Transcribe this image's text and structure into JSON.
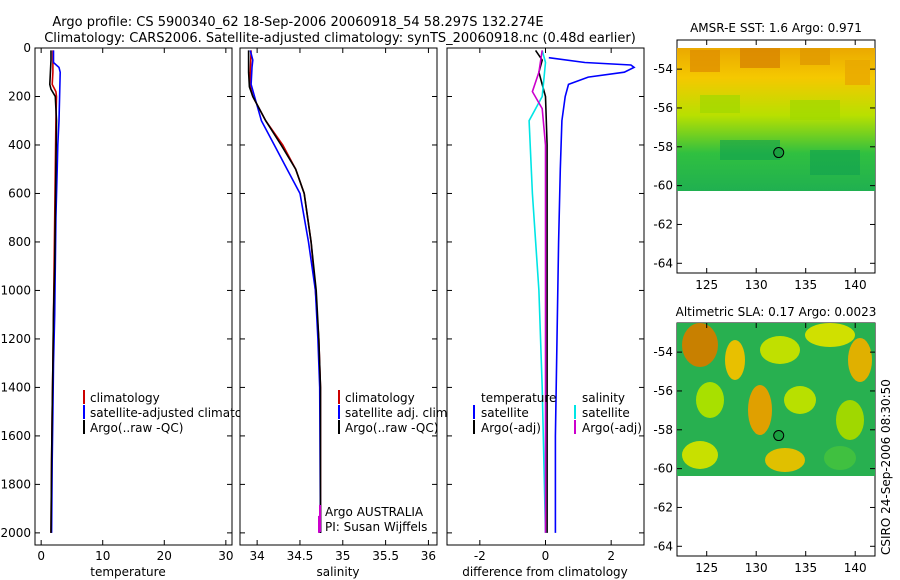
{
  "header": {
    "line1": "Argo profile: CS 5900340_62 18-Sep-2006 20060918_54 58.297S 132.274E",
    "line2": "Climatology: CARS2006. Satellite-adjusted climatology: synTS_20060918.nc (0.48d earlier)"
  },
  "side_label": "CSIRO 24-Sep-2006 08:30:50",
  "colors": {
    "climatology": "#cc0000",
    "satellite": "#0000ff",
    "argo": "#000000",
    "satellite_salinity": "#00e5e5",
    "argo_adj": "#cc00cc"
  },
  "chart_data": [
    {
      "type": "line",
      "xlabel": "temperature",
      "xlim": [
        -1,
        31
      ],
      "ylim": [
        2050,
        0
      ],
      "xticks": [
        0,
        10,
        20,
        30
      ],
      "yticks": [
        0,
        200,
        400,
        600,
        800,
        1000,
        1200,
        1400,
        1600,
        1800,
        2000
      ],
      "legend": [
        "climatology",
        "satellite-adjusted climatology",
        "Argo(..raw -QC)"
      ],
      "series": [
        {
          "name": "climatology",
          "color": "#cc0000",
          "x": [
            1.9,
            1.9,
            1.9,
            1.8,
            2.4,
            2.5,
            2.4,
            2.3,
            2.2,
            2.1,
            2.0,
            1.9,
            1.8,
            1.7,
            1.6
          ],
          "y": [
            10,
            50,
            100,
            150,
            180,
            200,
            300,
            500,
            700,
            900,
            1100,
            1300,
            1500,
            1700,
            2000
          ]
        },
        {
          "name": "satellite-adjusted climatology",
          "color": "#0000ff",
          "x": [
            2.0,
            2.0,
            2.9,
            3.1,
            3.0,
            2.9,
            2.7,
            2.6,
            2.4,
            2.3,
            2.2,
            2.0,
            1.9,
            1.8,
            1.7
          ],
          "y": [
            10,
            60,
            80,
            100,
            200,
            300,
            400,
            500,
            700,
            900,
            1100,
            1300,
            1500,
            1700,
            2000
          ]
        },
        {
          "name": "Argo(..raw -QC)",
          "color": "#000000",
          "x": [
            1.6,
            1.6,
            1.5,
            1.4,
            1.6,
            2.3,
            2.5,
            2.4,
            2.3,
            2.2,
            2.0,
            1.9,
            1.8,
            1.7,
            1.6
          ],
          "y": [
            10,
            50,
            100,
            150,
            170,
            200,
            300,
            500,
            700,
            900,
            1100,
            1300,
            1500,
            1700,
            2000
          ]
        }
      ]
    },
    {
      "type": "line",
      "xlabel": "salinity",
      "xlim": [
        33.8,
        36.1
      ],
      "ylim": [
        2050,
        0
      ],
      "xticks": [
        34,
        34.5,
        35,
        35.5,
        36
      ],
      "xtick_labels": [
        "34",
        "34.5",
        "35",
        "35.5",
        "36"
      ],
      "legend": [
        "climatology",
        "satellite adj. clim.",
        "Argo(..raw -QC)"
      ],
      "annotations": [
        "Argo AUSTRALIA",
        "PI: Susan Wijffels"
      ],
      "series": [
        {
          "name": "climatology",
          "color": "#cc0000",
          "x": [
            33.93,
            33.92,
            33.92,
            33.95,
            34.1,
            34.3,
            34.45,
            34.55,
            34.63,
            34.68,
            34.72,
            34.74,
            34.74
          ],
          "y": [
            10,
            100,
            160,
            200,
            300,
            400,
            500,
            600,
            800,
            1000,
            1200,
            1400,
            2000
          ]
        },
        {
          "name": "satellite adj. clim.",
          "color": "#0000ff",
          "x": [
            33.92,
            33.95,
            33.94,
            33.93,
            34.05,
            34.2,
            34.35,
            34.5,
            34.6,
            34.68,
            34.71,
            34.73,
            34.74
          ],
          "y": [
            10,
            50,
            80,
            150,
            300,
            400,
            500,
            600,
            800,
            1000,
            1200,
            1400,
            2000
          ]
        },
        {
          "name": "Argo(..raw -QC)",
          "color": "#000000",
          "x": [
            33.9,
            33.9,
            33.91,
            33.95,
            34.1,
            34.28,
            34.45,
            34.55,
            34.63,
            34.69,
            34.72,
            34.74,
            34.74
          ],
          "y": [
            10,
            100,
            160,
            200,
            300,
            400,
            500,
            600,
            800,
            1000,
            1200,
            1400,
            2000
          ]
        },
        {
          "name": "",
          "color": "#cc00cc",
          "x": [
            34.72,
            34.72
          ],
          "y": [
            1930,
            2000
          ]
        }
      ]
    },
    {
      "type": "line",
      "xlabel": "difference from climatology",
      "xlim": [
        -3,
        3
      ],
      "ylim": [
        2050,
        0
      ],
      "xticks": [
        -2,
        0,
        2
      ],
      "legend_columns": [
        {
          "title": "temperature",
          "items": [
            "satellite",
            "Argo(-adj)"
          ]
        },
        {
          "title": "salinity",
          "items": [
            "satellite",
            "Argo(-adj)"
          ]
        }
      ],
      "series": [
        {
          "name": "temperature satellite",
          "color": "#0000ff",
          "x": [
            0.1,
            1.2,
            2.6,
            2.7,
            2.4,
            1.3,
            0.7,
            0.6,
            0.5,
            0.45,
            0.4,
            0.35,
            0.3,
            0.3
          ],
          "y": [
            40,
            60,
            70,
            80,
            100,
            120,
            150,
            200,
            300,
            500,
            800,
            1200,
            1600,
            2000
          ]
        },
        {
          "name": "temperature Argo(-adj)",
          "color": "#000000",
          "x": [
            -0.3,
            -0.1,
            -0.2,
            -0.1,
            0.0,
            0.05,
            0.05,
            0.05,
            0.05,
            0.05
          ],
          "y": [
            10,
            50,
            100,
            150,
            200,
            400,
            800,
            1200,
            1600,
            2000
          ]
        },
        {
          "name": "salinity satellite",
          "color": "#00e5e5",
          "x": [
            -0.1,
            0.0,
            -0.1,
            -0.5,
            -0.4,
            -0.2,
            -0.1,
            0.0
          ],
          "y": [
            10,
            60,
            200,
            300,
            600,
            1000,
            1400,
            2000
          ]
        },
        {
          "name": "salinity Argo(-adj)",
          "color": "#cc00cc",
          "x": [
            -0.1,
            -0.2,
            -0.4,
            -0.1,
            0.0,
            0.0,
            0.0
          ],
          "y": [
            10,
            100,
            180,
            250,
            400,
            1000,
            2000
          ]
        }
      ]
    },
    {
      "type": "heatmap",
      "title": "AMSR-E SST: 1.6 Argo: 0.971",
      "xlim": [
        122,
        142
      ],
      "ylim": [
        -64.5,
        -52.5
      ],
      "xticks": [
        125,
        130,
        135,
        140
      ],
      "yticks": [
        -54,
        -56,
        -58,
        -60,
        -62,
        -64
      ],
      "data_extent": {
        "lat": [
          -60.2,
          -52.5
        ]
      },
      "marker": {
        "lon": 132.274,
        "lat": -58.297
      }
    },
    {
      "type": "heatmap",
      "title": "Altimetric SLA: 0.17 Argo: 0.0023",
      "xlim": [
        122,
        142
      ],
      "ylim": [
        -64.5,
        -52.5
      ],
      "xticks": [
        125,
        130,
        135,
        140
      ],
      "yticks": [
        -54,
        -56,
        -58,
        -60,
        -62,
        -64
      ],
      "data_extent": {
        "lat": [
          -60.2,
          -52.5
        ]
      },
      "marker": {
        "lon": 132.274,
        "lat": -58.297
      }
    }
  ]
}
